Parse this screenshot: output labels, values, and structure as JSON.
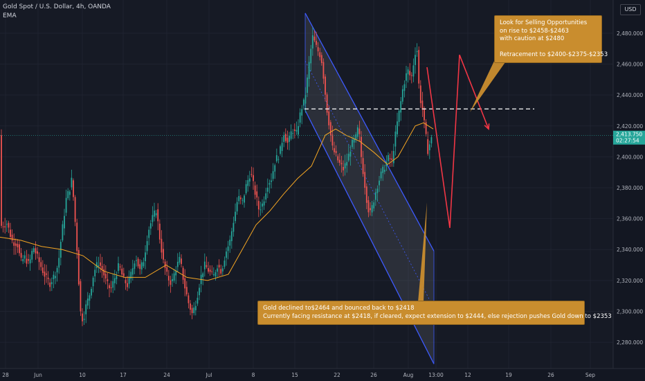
{
  "header": {
    "symbol": "Gold Spot / U.S. Dollar, 4h, OANDA",
    "indicator": "EMA",
    "currency": "USD"
  },
  "annotations": {
    "top": [
      "Look for Selling Opportunities",
      "on rise to $2458-$2463",
      "with caution at $2480",
      "",
      "Retracement to $2400-$2375-$2353"
    ],
    "bottom": [
      "Gold declined to$2464 and bounced back to $2418",
      "Currently facing resistance at $2418, if cleared, expect extension to $2444, else rejection pushes Gold down to $2353"
    ]
  },
  "colors": {
    "up": "#26a69a",
    "down": "#ef5350",
    "ema": "#f5a623",
    "channel": "#3d5afe",
    "projection": "#f23645",
    "note_bg": "#c98d2e"
  },
  "chart_data": {
    "type": "candlestick",
    "ylim": [
      2263,
      2497
    ],
    "y_ticks": [
      "2,280.000",
      "2,300.000",
      "2,320.000",
      "2,340.000",
      "2,360.000",
      "2,380.000",
      "2,400.000",
      "2,420.000",
      "2,440.000",
      "2,460.000",
      "2,480.000"
    ],
    "x_ticks": [
      "28",
      "Jun",
      "10",
      "17",
      "24",
      "Jul",
      "8",
      "15",
      "22",
      "26",
      "Aug",
      "13:00",
      "12",
      "19",
      "26",
      "Sep"
    ],
    "current_price": "2,413.750",
    "countdown": "02:27:54",
    "price_path": [
      [
        0,
        2355
      ],
      [
        10,
        2357
      ],
      [
        18,
        2345
      ],
      [
        25,
        2344
      ],
      [
        30,
        2332
      ],
      [
        36,
        2335
      ],
      [
        42,
        2330
      ],
      [
        48,
        2342
      ],
      [
        54,
        2335
      ],
      [
        60,
        2328
      ],
      [
        66,
        2322
      ],
      [
        72,
        2318
      ],
      [
        78,
        2323
      ],
      [
        84,
        2330
      ],
      [
        88,
        2346
      ],
      [
        92,
        2360
      ],
      [
        96,
        2374
      ],
      [
        100,
        2378
      ],
      [
        104,
        2386
      ],
      [
        108,
        2362
      ],
      [
        112,
        2335
      ],
      [
        116,
        2300
      ],
      [
        120,
        2294
      ],
      [
        124,
        2303
      ],
      [
        130,
        2312
      ],
      [
        136,
        2326
      ],
      [
        142,
        2332
      ],
      [
        148,
        2327
      ],
      [
        154,
        2318
      ],
      [
        160,
        2314
      ],
      [
        166,
        2322
      ],
      [
        172,
        2330
      ],
      [
        178,
        2321
      ],
      [
        184,
        2317
      ],
      [
        190,
        2325
      ],
      [
        196,
        2336
      ],
      [
        202,
        2326
      ],
      [
        208,
        2334
      ],
      [
        214,
        2352
      ],
      [
        220,
        2360
      ],
      [
        226,
        2366
      ],
      [
        230,
        2350
      ],
      [
        236,
        2332
      ],
      [
        242,
        2322
      ],
      [
        248,
        2318
      ],
      [
        254,
        2328
      ],
      [
        260,
        2334
      ],
      [
        266,
        2318
      ],
      [
        272,
        2306
      ],
      [
        278,
        2298
      ],
      [
        284,
        2308
      ],
      [
        290,
        2322
      ],
      [
        296,
        2330
      ],
      [
        302,
        2326
      ],
      [
        308,
        2322
      ],
      [
        314,
        2330
      ],
      [
        320,
        2326
      ],
      [
        326,
        2338
      ],
      [
        332,
        2345
      ],
      [
        338,
        2360
      ],
      [
        344,
        2374
      ],
      [
        350,
        2370
      ],
      [
        356,
        2382
      ],
      [
        362,
        2390
      ],
      [
        368,
        2378
      ],
      [
        374,
        2366
      ],
      [
        380,
        2370
      ],
      [
        386,
        2382
      ],
      [
        392,
        2386
      ],
      [
        398,
        2398
      ],
      [
        404,
        2402
      ],
      [
        410,
        2416
      ],
      [
        416,
        2408
      ],
      [
        422,
        2418
      ],
      [
        428,
        2414
      ],
      [
        432,
        2424
      ],
      [
        436,
        2432
      ],
      [
        440,
        2436
      ],
      [
        444,
        2450
      ],
      [
        448,
        2466
      ],
      [
        452,
        2478
      ],
      [
        456,
        2472
      ],
      [
        460,
        2468
      ],
      [
        464,
        2465
      ],
      [
        468,
        2450
      ],
      [
        472,
        2432
      ],
      [
        476,
        2420
      ],
      [
        480,
        2406
      ],
      [
        484,
        2402
      ],
      [
        490,
        2396
      ],
      [
        496,
        2392
      ],
      [
        502,
        2398
      ],
      [
        508,
        2408
      ],
      [
        514,
        2412
      ],
      [
        518,
        2420
      ],
      [
        522,
        2400
      ],
      [
        526,
        2386
      ],
      [
        530,
        2372
      ],
      [
        534,
        2362
      ],
      [
        538,
        2368
      ],
      [
        544,
        2380
      ],
      [
        550,
        2388
      ],
      [
        556,
        2394
      ],
      [
        562,
        2400
      ],
      [
        566,
        2396
      ],
      [
        570,
        2410
      ],
      [
        574,
        2422
      ],
      [
        578,
        2432
      ],
      [
        582,
        2444
      ],
      [
        586,
        2452
      ],
      [
        590,
        2456
      ],
      [
        594,
        2450
      ],
      [
        598,
        2462
      ],
      [
        602,
        2474
      ],
      [
        606,
        2440
      ],
      [
        610,
        2432
      ],
      [
        614,
        2418
      ],
      [
        618,
        2404
      ],
      [
        622,
        2410
      ],
      [
        626,
        2414
      ]
    ],
    "ema_path": [
      [
        0,
        2348
      ],
      [
        30,
        2346
      ],
      [
        60,
        2342
      ],
      [
        90,
        2340
      ],
      [
        120,
        2336
      ],
      [
        150,
        2326
      ],
      [
        180,
        2322
      ],
      [
        210,
        2322
      ],
      [
        240,
        2330
      ],
      [
        270,
        2322
      ],
      [
        300,
        2320
      ],
      [
        330,
        2324
      ],
      [
        350,
        2340
      ],
      [
        370,
        2356
      ],
      [
        390,
        2365
      ],
      [
        410,
        2376
      ],
      [
        430,
        2386
      ],
      [
        450,
        2394
      ],
      [
        470,
        2414
      ],
      [
        485,
        2418
      ],
      [
        500,
        2414
      ],
      [
        520,
        2410
      ],
      [
        540,
        2403
      ],
      [
        560,
        2395
      ],
      [
        575,
        2400
      ],
      [
        590,
        2412
      ],
      [
        600,
        2420
      ],
      [
        612,
        2422
      ],
      [
        626,
        2418
      ]
    ],
    "channel": {
      "upper": [
        [
          441,
          2493
        ],
        [
          627,
          2339
        ]
      ],
      "lower": [
        [
          441,
          2430
        ],
        [
          627,
          2266
        ]
      ],
      "mid": [
        [
          441,
          2462
        ],
        [
          627,
          2302
        ]
      ]
    },
    "resistance_level": {
      "value": 2431,
      "x_start": 440,
      "x_end": 772
    },
    "projection_path": [
      [
        617,
        2458
      ],
      [
        650,
        2354
      ],
      [
        664,
        2466
      ],
      [
        706,
        2418
      ]
    ]
  }
}
